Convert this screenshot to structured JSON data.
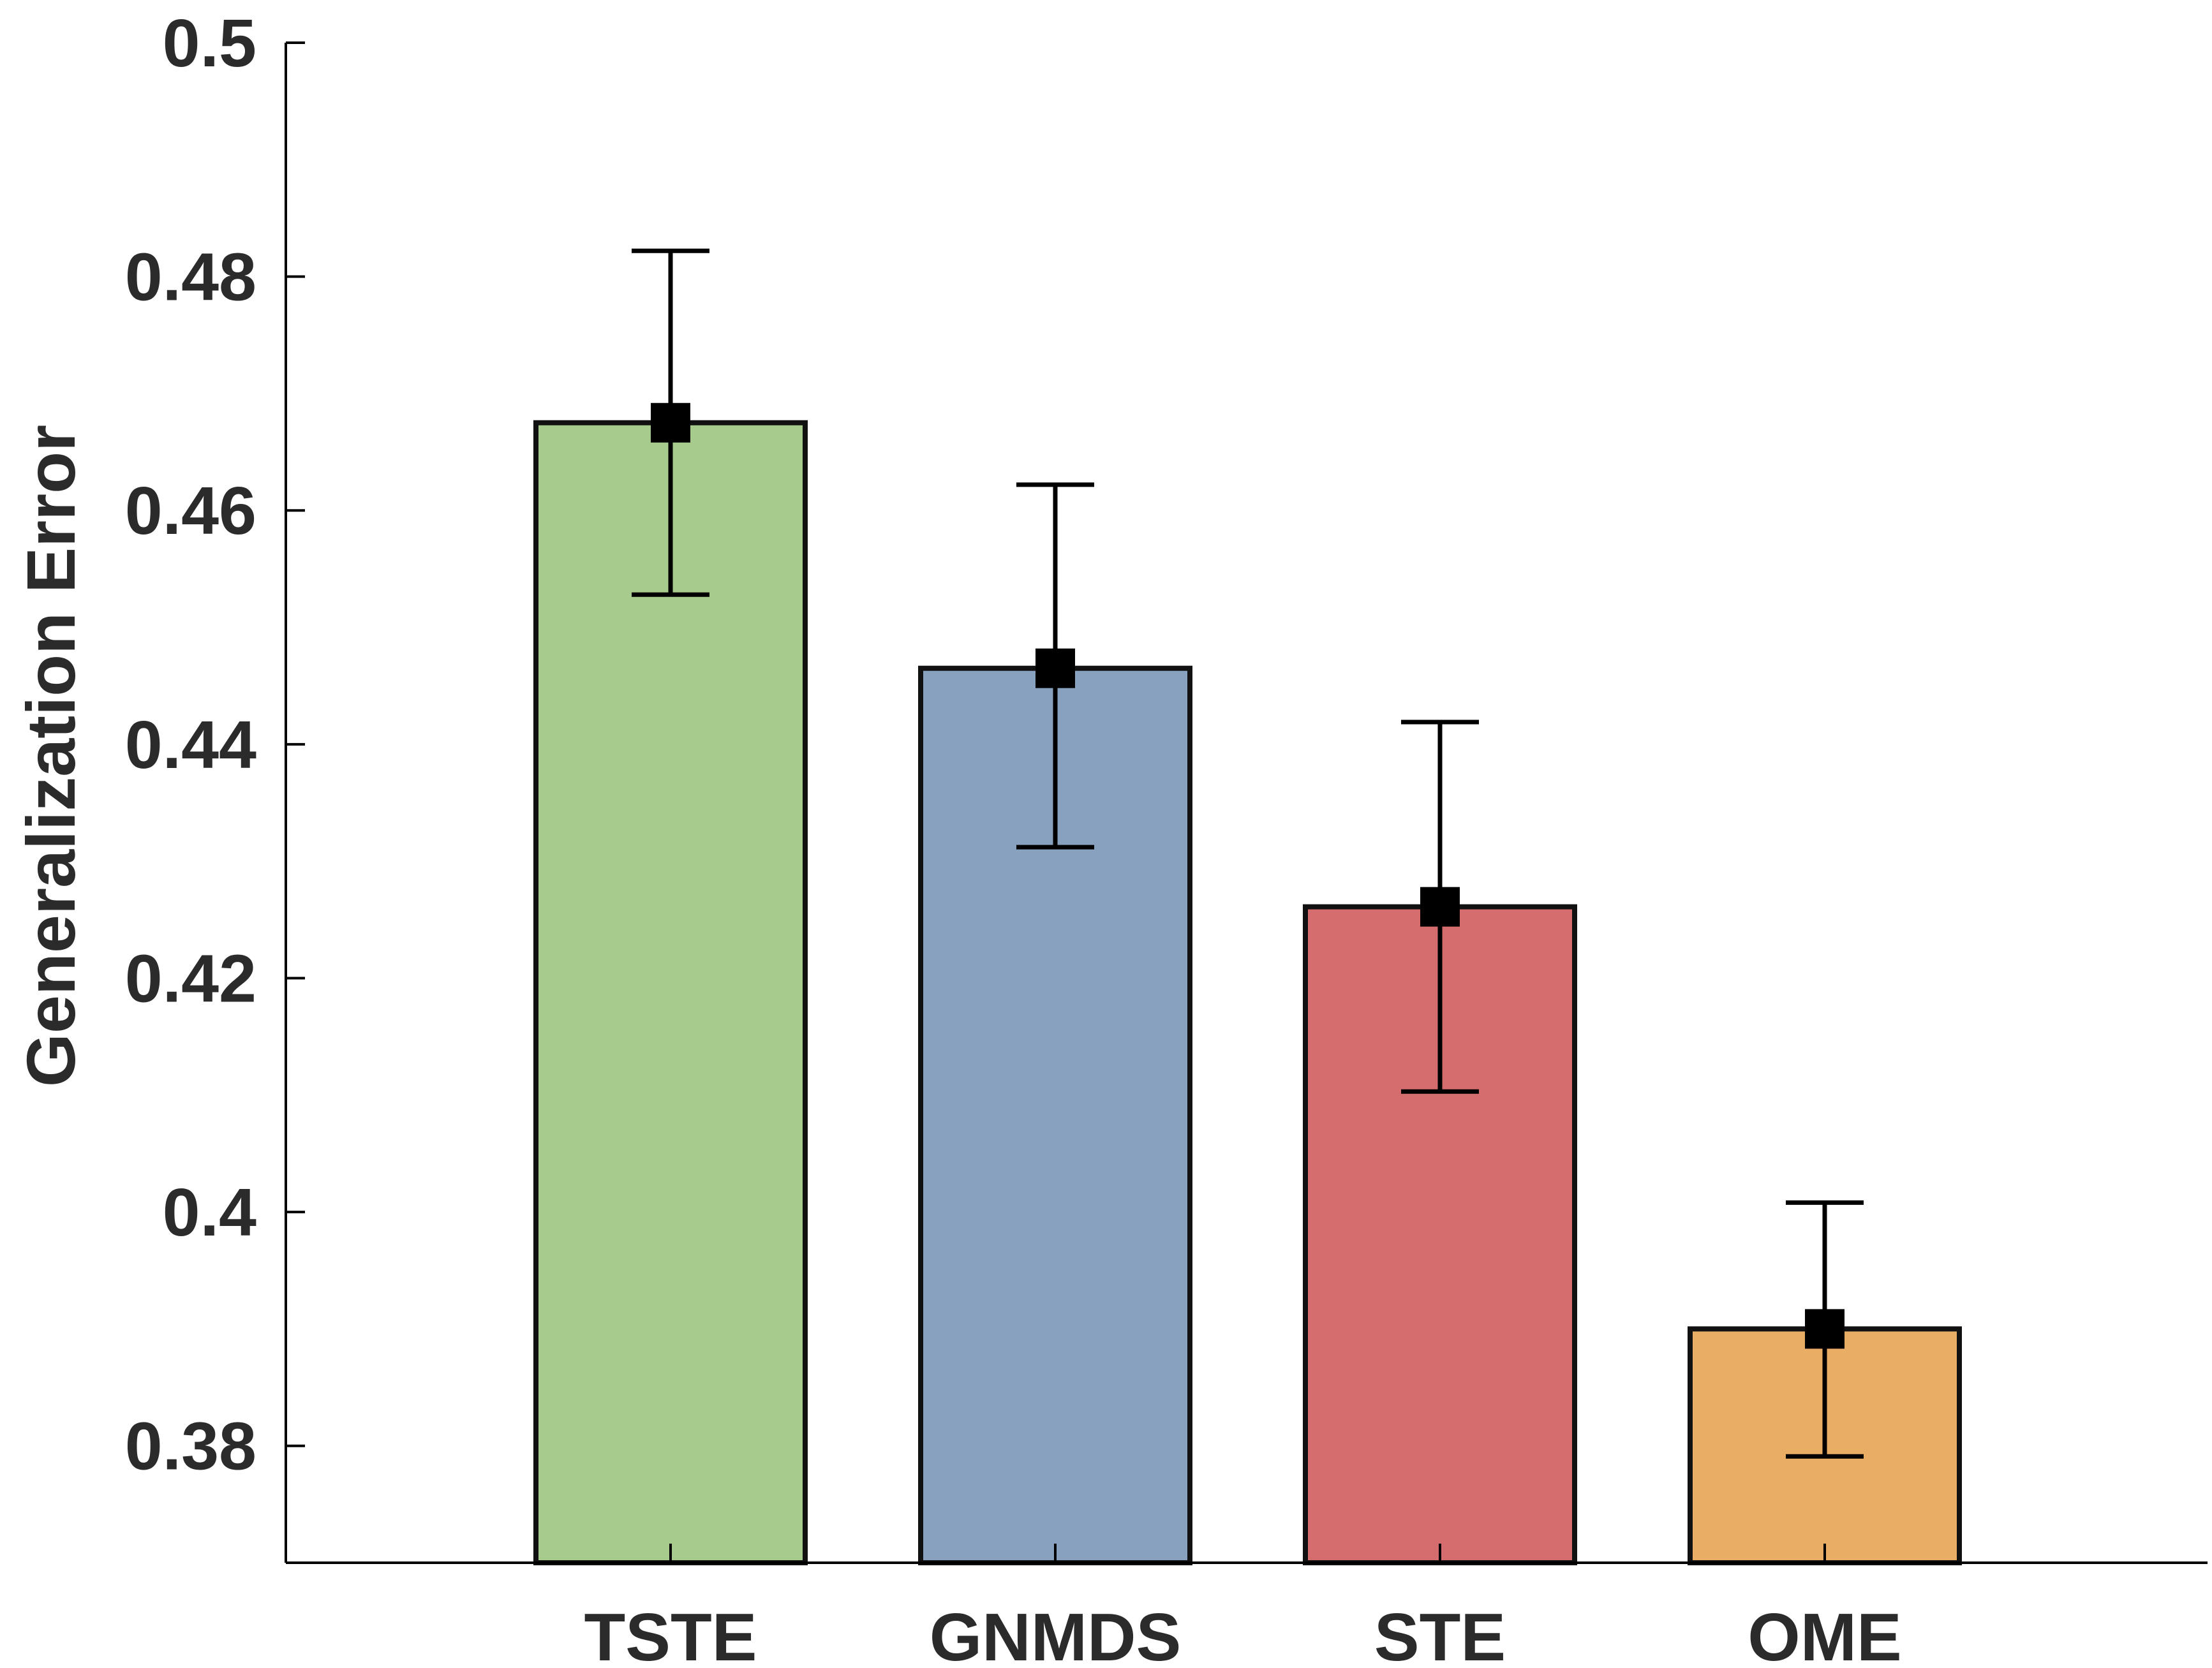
{
  "chart_data": {
    "type": "bar",
    "title": "",
    "xlabel": "",
    "ylabel": "Generalization Error",
    "ylim": [
      0.37,
      0.5
    ],
    "yticks": [
      0.38,
      0.4,
      0.42,
      0.44,
      0.46,
      0.48,
      0.5
    ],
    "ytick_labels": [
      "0.38",
      "0.4",
      "0.42",
      "0.44",
      "0.46",
      "0.48",
      "0.5"
    ],
    "categories": [
      "TSTE",
      "GNMDS",
      "STE",
      "OME"
    ],
    "values": [
      0.4675,
      0.4465,
      0.4261,
      0.39
    ],
    "error_low": [
      0.4528,
      0.4312,
      0.4103,
      0.3791
    ],
    "error_high": [
      0.4822,
      0.4622,
      0.4419,
      0.4008
    ],
    "colors": [
      "#a6cb8c",
      "#87a1bf",
      "#d56c6e",
      "#eaad65"
    ],
    "grid": false,
    "legend": "none"
  }
}
